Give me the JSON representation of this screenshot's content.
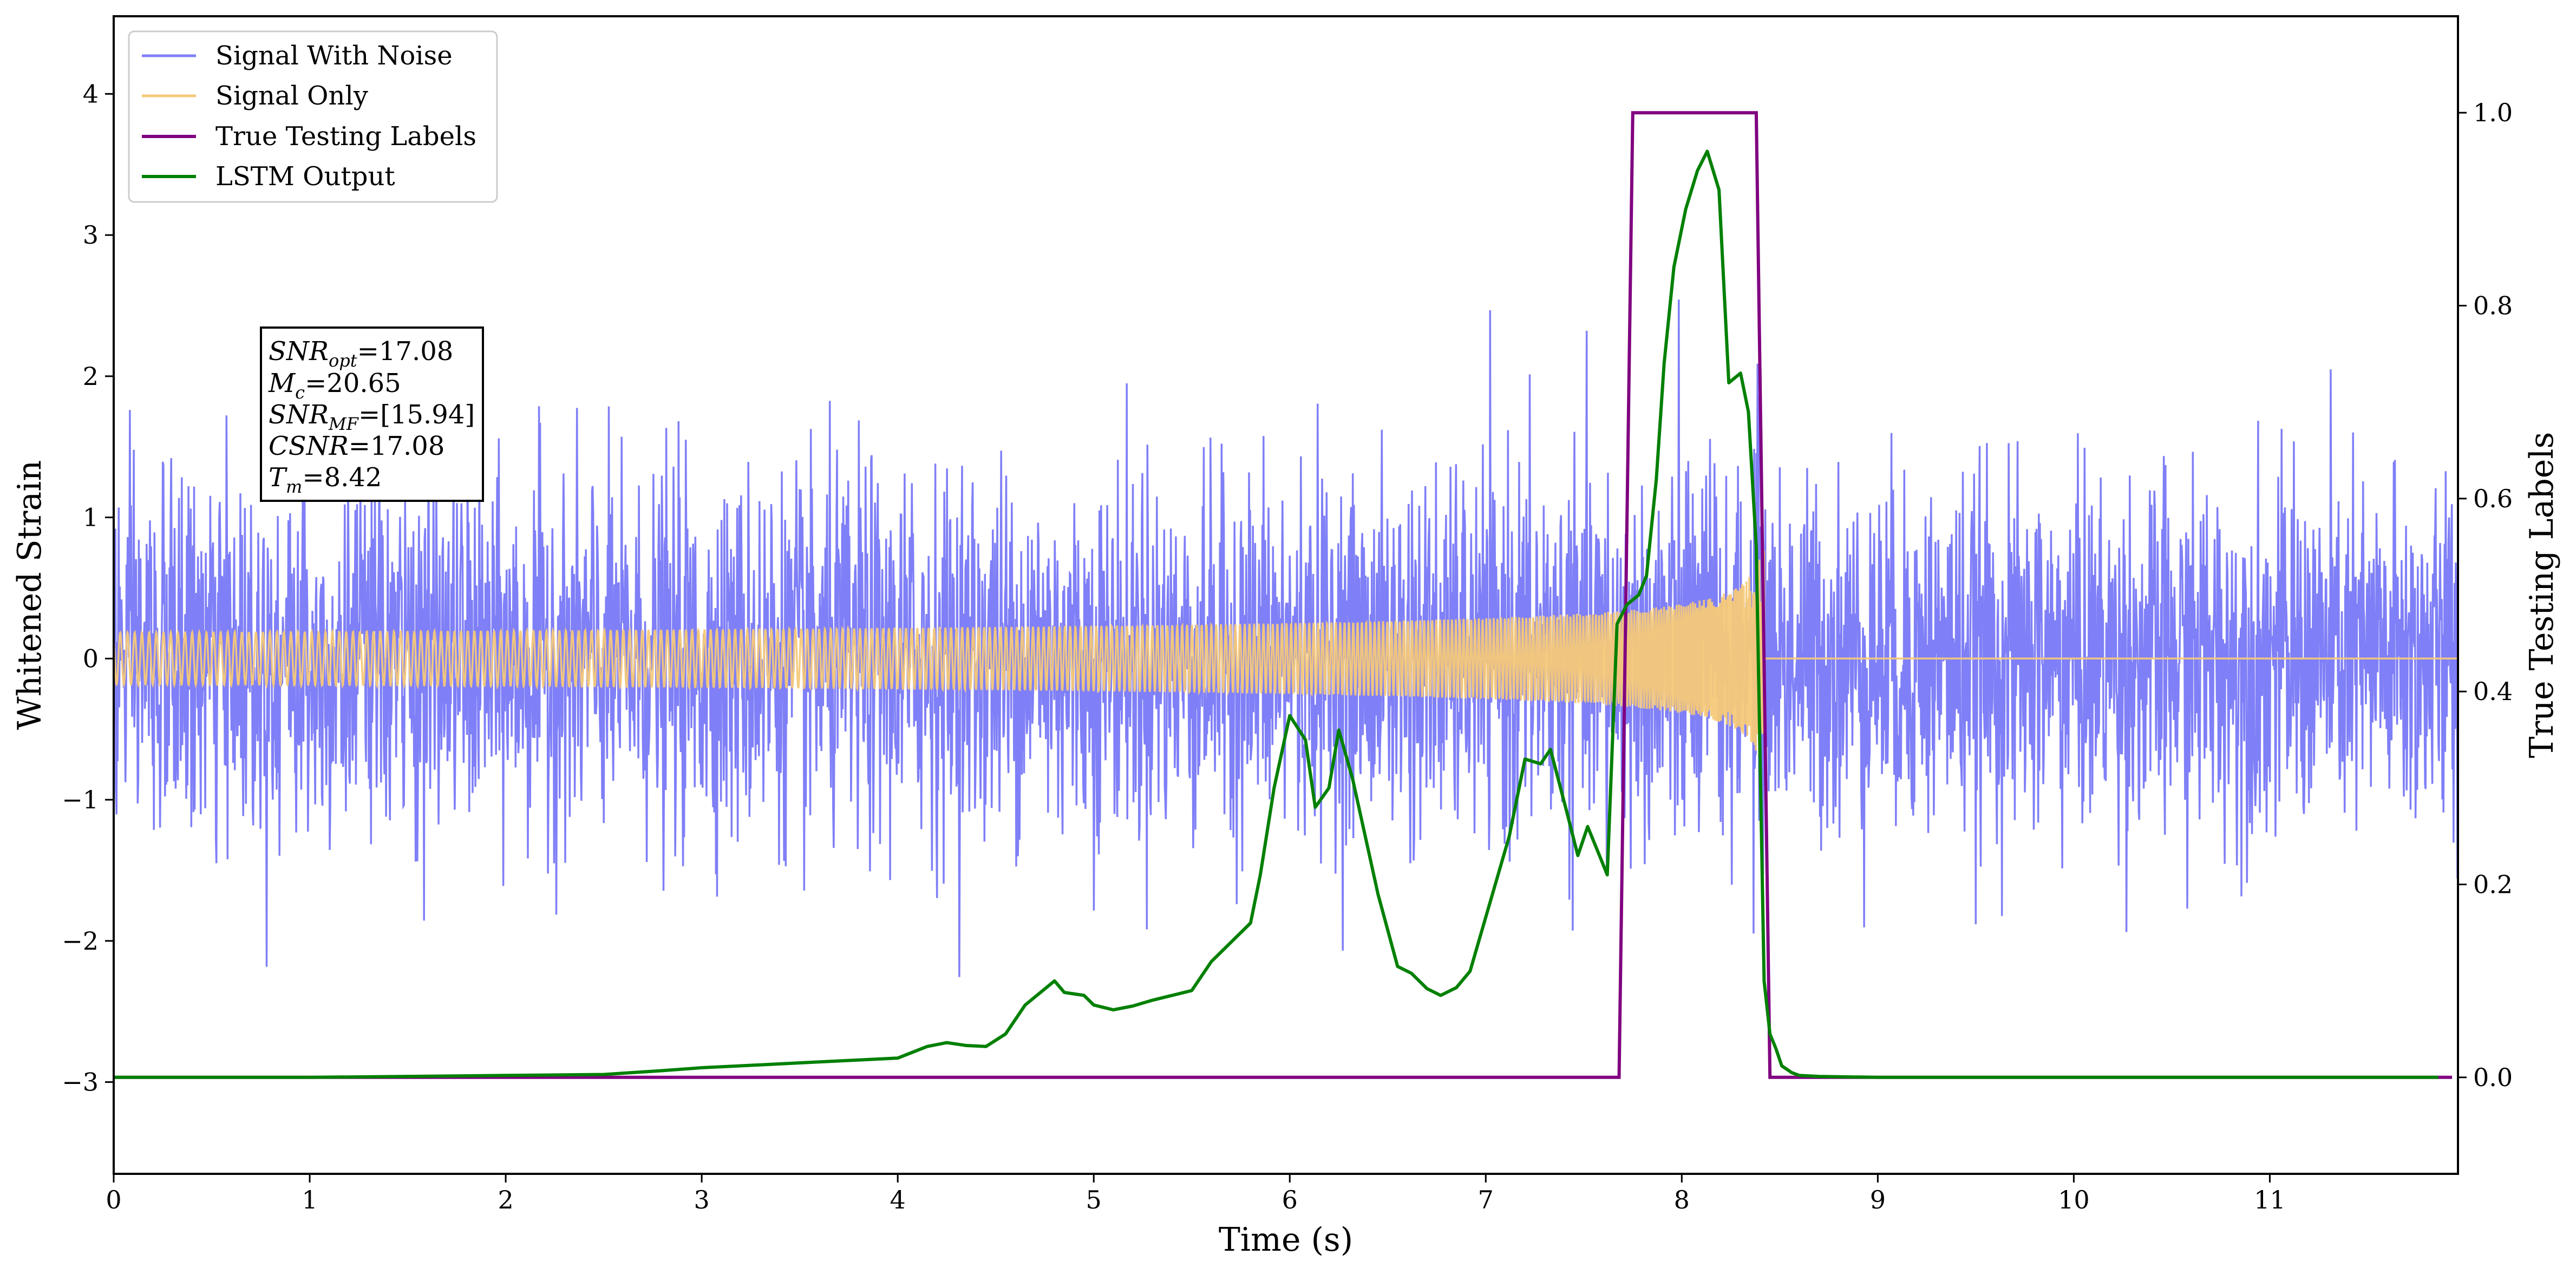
{
  "chart_data": {
    "type": "line",
    "xlabel": "Time (s)",
    "ylabel_left": "Whitened Strain",
    "ylabel_right": "True Testing Labels",
    "xlim": [
      0,
      12
    ],
    "ylim_left": [
      -3.65,
      4.55
    ],
    "ylim_right": [
      -0.1,
      1.1
    ],
    "xticks": [
      "0",
      "1",
      "2",
      "3",
      "4",
      "5",
      "6",
      "7",
      "8",
      "9",
      "10",
      "11"
    ],
    "yticks_left": [
      "−3",
      "−2",
      "−1",
      "0",
      "1",
      "2",
      "3",
      "4"
    ],
    "yticks_right": [
      "0.0",
      "0.2",
      "0.4",
      "0.6",
      "0.8",
      "1.0"
    ],
    "grid": false,
    "legend_position": "upper-left",
    "series": [
      {
        "name": "Signal With Noise",
        "axis": "left",
        "color": "#7f7ff7",
        "description_values": {
          "x_range": [
            0,
            12
          ],
          "typical_amplitude": 0.9,
          "max": 2.47,
          "min": -2.12
        }
      },
      {
        "name": "Signal Only",
        "axis": "left",
        "color": "#f5c979",
        "chirp": {
          "start": 0,
          "merger": 8.42,
          "end_amplitude": 0.95,
          "start_amplitude": 0.02
        }
      },
      {
        "name": "True Testing Labels",
        "axis": "right",
        "color": "#800080",
        "x": [
          0,
          7.68,
          7.75,
          8.38,
          8.45,
          11.93
        ],
        "y": [
          0,
          0,
          1,
          1,
          0,
          0
        ]
      },
      {
        "name": "LSTM Output",
        "axis": "right",
        "color": "#008000",
        "x": [
          0,
          1,
          2,
          2.5,
          2.8,
          3.0,
          3.2,
          3.4,
          3.6,
          3.8,
          4.0,
          4.15,
          4.25,
          4.35,
          4.45,
          4.55,
          4.65,
          4.8,
          4.85,
          4.95,
          5.0,
          5.1,
          5.2,
          5.3,
          5.4,
          5.5,
          5.6,
          5.65,
          5.7,
          5.8,
          5.85,
          5.92,
          6.0,
          6.08,
          6.13,
          6.2,
          6.25,
          6.32,
          6.45,
          6.55,
          6.62,
          6.7,
          6.77,
          6.85,
          6.92,
          7.02,
          7.12,
          7.2,
          7.28,
          7.33,
          7.42,
          7.47,
          7.52,
          7.58,
          7.62,
          7.67,
          7.72,
          7.78,
          7.82,
          7.87,
          7.91,
          7.96,
          8.02,
          8.08,
          8.13,
          8.19,
          8.24,
          8.3,
          8.34,
          8.38,
          8.42,
          8.45,
          8.48,
          8.51,
          8.56,
          8.6,
          8.7,
          9,
          10,
          11,
          11.86
        ],
        "y": [
          0,
          0,
          0.002,
          0.003,
          0.007,
          0.01,
          0.012,
          0.014,
          0.016,
          0.018,
          0.02,
          0.032,
          0.036,
          0.033,
          0.032,
          0.045,
          0.075,
          0.1,
          0.088,
          0.085,
          0.075,
          0.07,
          0.074,
          0.08,
          0.085,
          0.09,
          0.12,
          0.13,
          0.14,
          0.16,
          0.21,
          0.3,
          0.375,
          0.35,
          0.28,
          0.3,
          0.36,
          0.31,
          0.19,
          0.115,
          0.108,
          0.092,
          0.085,
          0.093,
          0.11,
          0.18,
          0.25,
          0.33,
          0.325,
          0.34,
          0.27,
          0.23,
          0.26,
          0.23,
          0.21,
          0.47,
          0.49,
          0.5,
          0.52,
          0.62,
          0.74,
          0.84,
          0.9,
          0.94,
          0.96,
          0.92,
          0.72,
          0.73,
          0.69,
          0.55,
          0.1,
          0.045,
          0.03,
          0.012,
          0.005,
          0.002,
          0.001,
          0,
          0,
          0,
          0
        ]
      }
    ],
    "annotation_box": {
      "lines": [
        {
          "name": "SNR",
          "sub": "opt",
          "value": "=17.08"
        },
        {
          "name": "M",
          "sub": "c",
          "value": "=20.65"
        },
        {
          "name": "SNR",
          "sub": "MF",
          "value": "=[15.94]"
        },
        {
          "name": "CSNR",
          "sub": "",
          "value": "=17.08"
        },
        {
          "name": "T",
          "sub": "m",
          "value": "=8.42"
        }
      ]
    }
  }
}
